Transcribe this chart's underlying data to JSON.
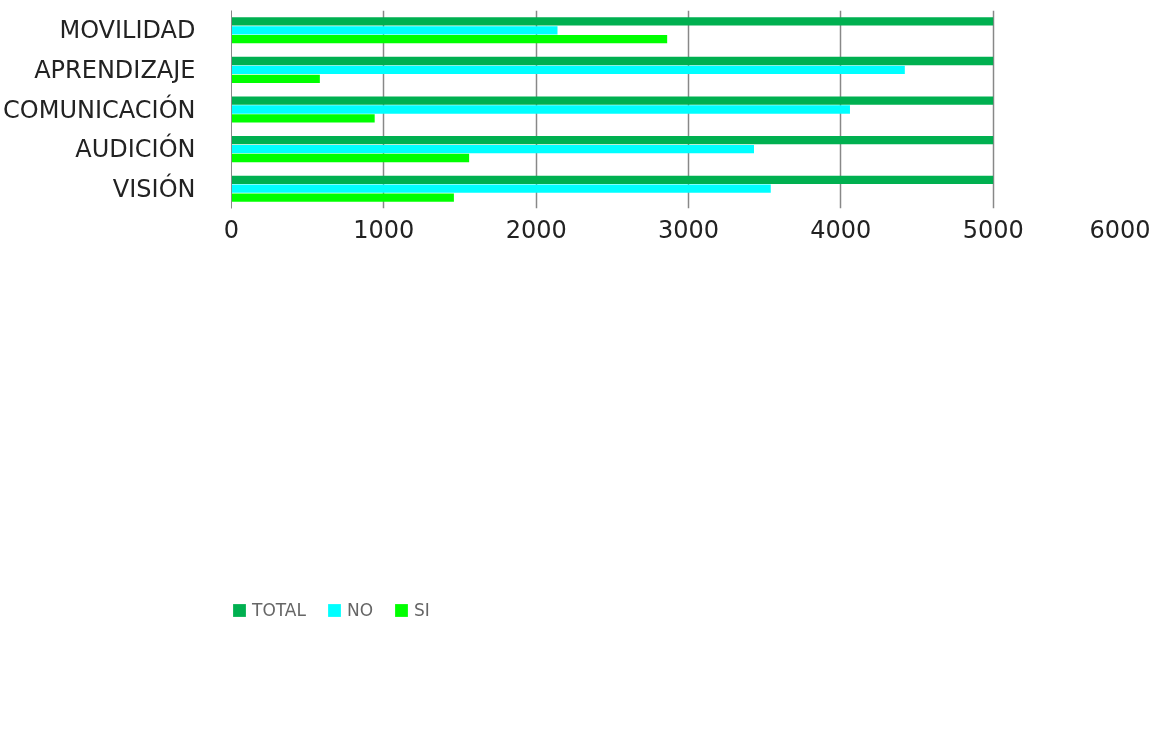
{
  "chart_data": {
    "type": "bar",
    "orientation": "horizontal",
    "categories": [
      "MOVILIDAD",
      "APRENDIZAJE",
      "COMUNICACIÓN",
      "AUDICIÓN",
      "VISIÓN"
    ],
    "series": [
      {
        "name": "TOTAL",
        "color": "#00b050",
        "values": [
          5000,
          5000,
          5000,
          5000,
          5000
        ]
      },
      {
        "name": "NO",
        "color": "#00ffff",
        "values": [
          2140,
          4420,
          4060,
          3430,
          3540
        ]
      },
      {
        "name": "SI",
        "color": "#00ff00",
        "values": [
          2860,
          580,
          940,
          1560,
          1460
        ]
      }
    ],
    "xlim": [
      0,
      6000
    ],
    "xticks": [
      0,
      1000,
      2000,
      3000,
      4000,
      5000,
      6000
    ],
    "grid": "x",
    "legend": "bottom left"
  }
}
